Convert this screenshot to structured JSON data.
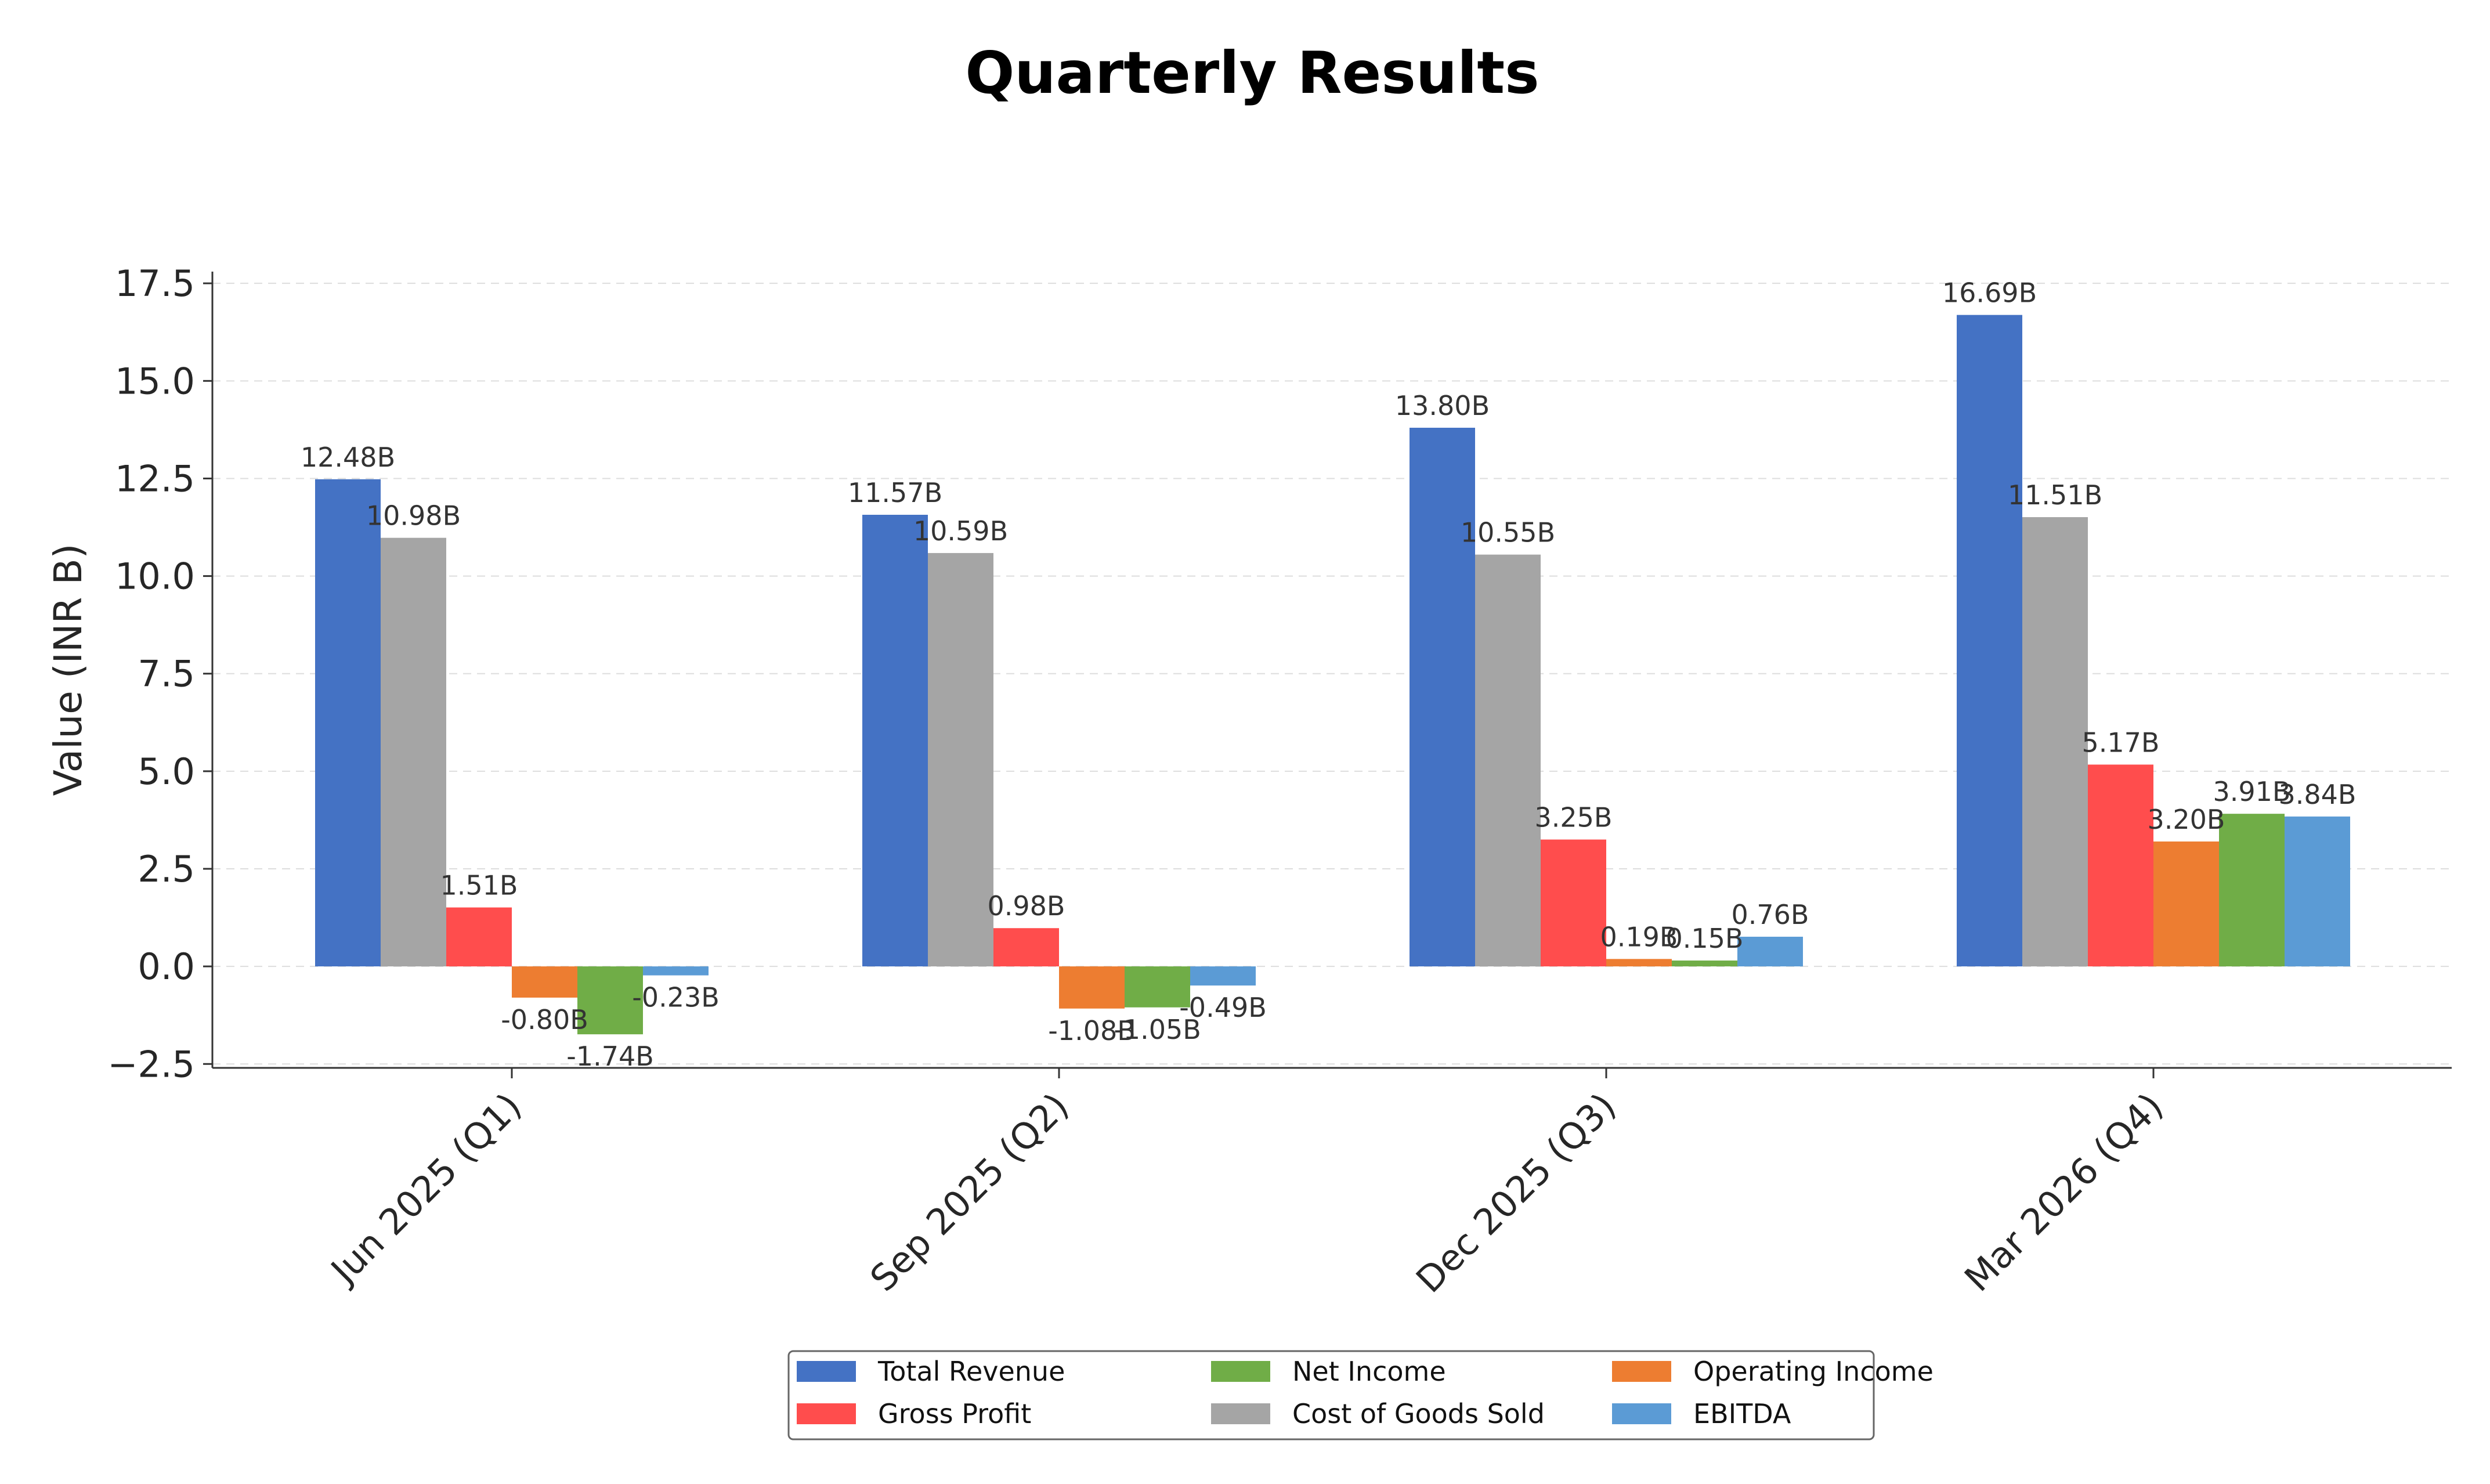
{
  "chart_data": {
    "type": "bar",
    "title": "Quarterly Results",
    "xlabel": "",
    "ylabel": "Value (INR B)",
    "ylim": [
      -2.6,
      17.8
    ],
    "yticks": [
      "−2.5",
      "0.0",
      "2.5",
      "5.0",
      "7.5",
      "10.0",
      "12.5",
      "15.0",
      "17.5"
    ],
    "ytick_values": [
      -2.5,
      0,
      2.5,
      5,
      7.5,
      10,
      12.5,
      15,
      17.5
    ],
    "grid": true,
    "legend_position": "bottom-center",
    "categories": [
      "Jun 2025 (Q1)",
      "Sep 2025 (Q2)",
      "Dec 2025 (Q3)",
      "Mar 2026 (Q4)"
    ],
    "series": [
      {
        "name": "Total Revenue",
        "color": "#4472c4",
        "values": [
          12.48,
          11.57,
          13.8,
          16.69
        ],
        "labels": [
          "12.48B",
          "11.57B",
          "13.80B",
          "16.69B"
        ]
      },
      {
        "name": "Cost of Goods Sold",
        "color": "#a5a5a5",
        "values": [
          10.98,
          10.59,
          10.55,
          11.51
        ],
        "labels": [
          "10.98B",
          "10.59B",
          "10.55B",
          "11.51B"
        ]
      },
      {
        "name": "Gross Profit",
        "color": "#ff4d4d",
        "values": [
          1.51,
          0.98,
          3.25,
          5.17
        ],
        "labels": [
          "1.51B",
          "0.98B",
          "3.25B",
          "5.17B"
        ]
      },
      {
        "name": "Operating Income",
        "color": "#ed7d31",
        "values": [
          -0.8,
          -1.08,
          0.19,
          3.2
        ],
        "labels": [
          "-0.80B",
          "-1.08B",
          "0.19B",
          "3.20B"
        ]
      },
      {
        "name": "Net Income",
        "color": "#70ad47",
        "values": [
          -1.74,
          -1.05,
          0.15,
          3.91
        ],
        "labels": [
          "-1.74B",
          "-1.05B",
          "0.15B",
          "3.91B"
        ]
      },
      {
        "name": "EBITDA",
        "color": "#5b9bd5",
        "values": [
          -0.23,
          -0.49,
          0.76,
          3.84
        ],
        "labels": [
          "-0.23B",
          "-0.49B",
          "0.76B",
          "3.84B"
        ]
      }
    ],
    "legend_order": [
      0,
      2,
      4,
      1,
      3,
      5
    ]
  }
}
